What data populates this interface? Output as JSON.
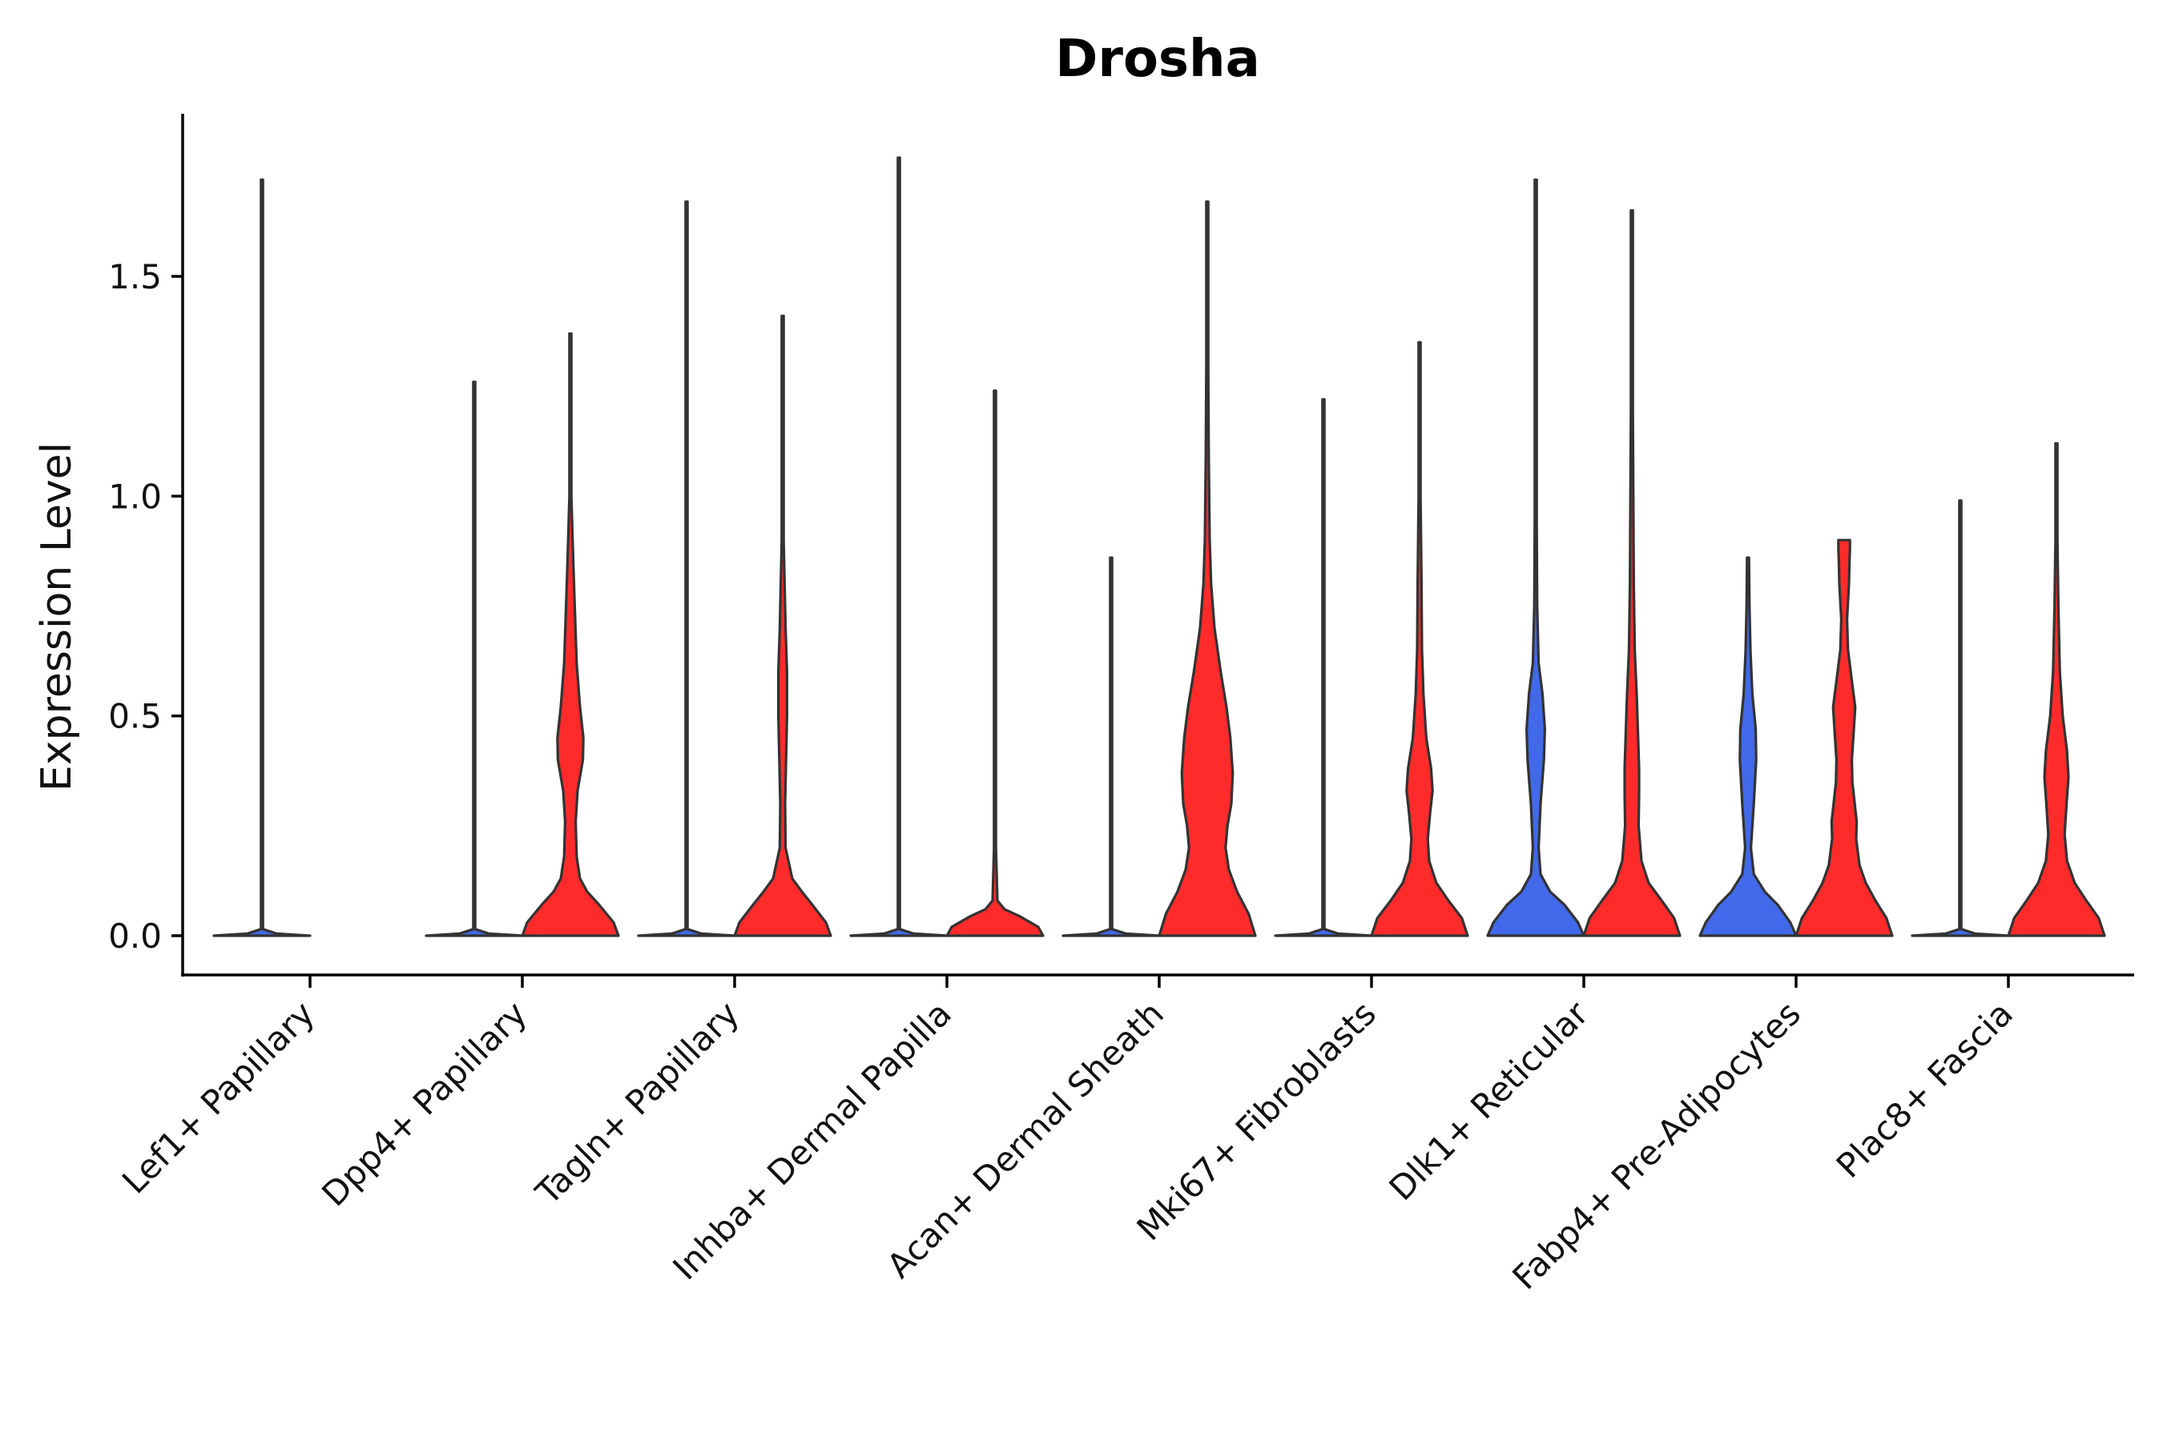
{
  "chart_data": {
    "type": "violin",
    "title": "Drosha",
    "xlabel": "",
    "ylabel": "Expression Level",
    "ylim": [
      -0.09,
      1.87
    ],
    "yticks": [
      0.0,
      0.5,
      1.0,
      1.5
    ],
    "ytick_labels": [
      "0.0",
      "0.5",
      "1.0",
      "1.5"
    ],
    "grid": false,
    "legend": "none",
    "colors": {
      "blue": "#4169e9",
      "red": "#ff2b2b",
      "outline": "#333333"
    },
    "categories": [
      "Lef1+ Papillary",
      "Dpp4+ Papillary",
      "Tagln+ Papillary",
      "Inhba+ Dermal Papilla",
      "Acan+ Dermal Sheath",
      "Mki67+ Fibroblasts",
      "Dlk1+ Reticular",
      "Fabp4+ Pre-Adipocytes",
      "Plac8+ Fascia"
    ],
    "series": [
      {
        "name": "blue",
        "color": "#4169e9",
        "groups": [
          {
            "max": 1.72,
            "profile": [
              [
                0,
                1
              ],
              [
                0.005,
                0.3
              ],
              [
                0.015,
                0.01
              ],
              [
                0.05,
                0.002
              ],
              [
                0.7,
                0.003
              ],
              [
                1.72,
                0.001
              ]
            ]
          },
          {
            "max": 1.26,
            "profile": [
              [
                0,
                1
              ],
              [
                0.005,
                0.3
              ],
              [
                0.015,
                0.01
              ],
              [
                0.05,
                0.002
              ],
              [
                1.26,
                0.001
              ]
            ]
          },
          {
            "max": 1.67,
            "profile": [
              [
                0,
                1
              ],
              [
                0.005,
                0.3
              ],
              [
                0.015,
                0.01
              ],
              [
                0.05,
                0.002
              ],
              [
                1.67,
                0.001
              ]
            ]
          },
          {
            "max": 1.77,
            "profile": [
              [
                0,
                1
              ],
              [
                0.005,
                0.3
              ],
              [
                0.015,
                0.01
              ],
              [
                0.05,
                0.002
              ],
              [
                1.77,
                0.001
              ]
            ]
          },
          {
            "max": 0.86,
            "profile": [
              [
                0,
                1
              ],
              [
                0.005,
                0.3
              ],
              [
                0.015,
                0.01
              ],
              [
                0.05,
                0.002
              ],
              [
                0.3,
                0.004
              ],
              [
                0.6,
                0.004
              ],
              [
                0.86,
                0.001
              ]
            ]
          },
          {
            "max": 1.22,
            "profile": [
              [
                0,
                1
              ],
              [
                0.005,
                0.3
              ],
              [
                0.015,
                0.01
              ],
              [
                0.05,
                0.002
              ],
              [
                1.22,
                0.001
              ]
            ]
          },
          {
            "max": 1.72,
            "profile": [
              [
                0,
                1
              ],
              [
                0.03,
                0.88
              ],
              [
                0.07,
                0.6
              ],
              [
                0.1,
                0.3
              ],
              [
                0.14,
                0.1
              ],
              [
                0.2,
                0.06
              ],
              [
                0.3,
                0.1
              ],
              [
                0.4,
                0.17
              ],
              [
                0.47,
                0.19
              ],
              [
                0.55,
                0.14
              ],
              [
                0.62,
                0.06
              ],
              [
                0.75,
                0.03
              ],
              [
                0.95,
                0.015
              ],
              [
                1.2,
                0.01
              ],
              [
                1.5,
                0.006
              ],
              [
                1.72,
                0.002
              ]
            ]
          },
          {
            "max": 0.86,
            "profile": [
              [
                0,
                1
              ],
              [
                0.03,
                0.88
              ],
              [
                0.07,
                0.62
              ],
              [
                0.1,
                0.35
              ],
              [
                0.14,
                0.12
              ],
              [
                0.2,
                0.06
              ],
              [
                0.3,
                0.12
              ],
              [
                0.4,
                0.17
              ],
              [
                0.47,
                0.16
              ],
              [
                0.55,
                0.09
              ],
              [
                0.65,
                0.05
              ],
              [
                0.75,
                0.03
              ],
              [
                0.86,
                0.002
              ]
            ]
          },
          {
            "max": 0.99,
            "profile": [
              [
                0,
                1
              ],
              [
                0.005,
                0.3
              ],
              [
                0.015,
                0.01
              ],
              [
                0.05,
                0.002
              ],
              [
                0.45,
                0.005
              ],
              [
                0.99,
                0.001
              ]
            ]
          }
        ]
      },
      {
        "name": "red",
        "color": "#ff2b2b",
        "groups": [
          null,
          {
            "max": 1.37,
            "profile": [
              [
                0,
                1
              ],
              [
                0.03,
                0.9
              ],
              [
                0.07,
                0.6
              ],
              [
                0.1,
                0.35
              ],
              [
                0.13,
                0.2
              ],
              [
                0.18,
                0.13
              ],
              [
                0.26,
                0.11
              ],
              [
                0.33,
                0.15
              ],
              [
                0.4,
                0.26
              ],
              [
                0.45,
                0.27
              ],
              [
                0.52,
                0.2
              ],
              [
                0.62,
                0.13
              ],
              [
                0.75,
                0.09
              ],
              [
                0.85,
                0.06
              ],
              [
                1.0,
                0.02
              ],
              [
                1.2,
                0.01
              ],
              [
                1.37,
                0.002
              ]
            ]
          },
          {
            "max": 1.41,
            "profile": [
              [
                0,
                1
              ],
              [
                0.03,
                0.9
              ],
              [
                0.07,
                0.62
              ],
              [
                0.1,
                0.4
              ],
              [
                0.13,
                0.2
              ],
              [
                0.2,
                0.06
              ],
              [
                0.3,
                0.05
              ],
              [
                0.4,
                0.07
              ],
              [
                0.5,
                0.09
              ],
              [
                0.6,
                0.09
              ],
              [
                0.7,
                0.06
              ],
              [
                0.8,
                0.04
              ],
              [
                0.9,
                0.02
              ],
              [
                1.1,
                0.01
              ],
              [
                1.41,
                0.002
              ]
            ]
          },
          {
            "max": 1.24,
            "profile": [
              [
                0,
                1
              ],
              [
                0.02,
                0.9
              ],
              [
                0.045,
                0.5
              ],
              [
                0.06,
                0.2
              ],
              [
                0.08,
                0.05
              ],
              [
                0.2,
                0.01
              ],
              [
                0.4,
                0.015
              ],
              [
                0.6,
                0.01
              ],
              [
                0.8,
                0.01
              ],
              [
                1.0,
                0.005
              ],
              [
                1.24,
                0.002
              ]
            ]
          },
          {
            "max": 1.67,
            "profile": [
              [
                0,
                1
              ],
              [
                0.05,
                0.86
              ],
              [
                0.1,
                0.62
              ],
              [
                0.15,
                0.45
              ],
              [
                0.2,
                0.38
              ],
              [
                0.25,
                0.42
              ],
              [
                0.3,
                0.5
              ],
              [
                0.37,
                0.53
              ],
              [
                0.45,
                0.48
              ],
              [
                0.52,
                0.4
              ],
              [
                0.6,
                0.28
              ],
              [
                0.7,
                0.15
              ],
              [
                0.8,
                0.08
              ],
              [
                0.9,
                0.05
              ],
              [
                1.1,
                0.03
              ],
              [
                1.3,
                0.02
              ],
              [
                1.5,
                0.01
              ],
              [
                1.67,
                0.002
              ]
            ]
          },
          {
            "max": 1.35,
            "profile": [
              [
                0,
                1
              ],
              [
                0.04,
                0.88
              ],
              [
                0.08,
                0.6
              ],
              [
                0.12,
                0.35
              ],
              [
                0.17,
                0.2
              ],
              [
                0.22,
                0.17
              ],
              [
                0.28,
                0.22
              ],
              [
                0.33,
                0.27
              ],
              [
                0.38,
                0.24
              ],
              [
                0.45,
                0.14
              ],
              [
                0.55,
                0.08
              ],
              [
                0.65,
                0.05
              ],
              [
                0.8,
                0.04
              ],
              [
                1.0,
                0.02
              ],
              [
                1.2,
                0.01
              ],
              [
                1.35,
                0.002
              ]
            ]
          },
          {
            "max": 1.65,
            "profile": [
              [
                0,
                1
              ],
              [
                0.04,
                0.88
              ],
              [
                0.08,
                0.62
              ],
              [
                0.12,
                0.35
              ],
              [
                0.17,
                0.2
              ],
              [
                0.25,
                0.14
              ],
              [
                0.32,
                0.15
              ],
              [
                0.38,
                0.15
              ],
              [
                0.45,
                0.13
              ],
              [
                0.55,
                0.1
              ],
              [
                0.65,
                0.06
              ],
              [
                0.8,
                0.04
              ],
              [
                1.0,
                0.03
              ],
              [
                1.2,
                0.02
              ],
              [
                1.45,
                0.01
              ],
              [
                1.65,
                0.002
              ]
            ]
          },
          {
            "max": 0.9,
            "profile": [
              [
                0,
                1
              ],
              [
                0.04,
                0.88
              ],
              [
                0.08,
                0.65
              ],
              [
                0.12,
                0.45
              ],
              [
                0.16,
                0.32
              ],
              [
                0.22,
                0.25
              ],
              [
                0.26,
                0.26
              ],
              [
                0.3,
                0.22
              ],
              [
                0.35,
                0.17
              ],
              [
                0.4,
                0.16
              ],
              [
                0.45,
                0.19
              ],
              [
                0.52,
                0.23
              ],
              [
                0.58,
                0.16
              ],
              [
                0.65,
                0.08
              ],
              [
                0.72,
                0.06
              ],
              [
                0.8,
                0.1
              ],
              [
                0.85,
                0.11
              ],
              [
                0.88,
                0.12
              ],
              [
                0.9,
                0.12
              ]
            ]
          },
          {
            "max": 1.12,
            "profile": [
              [
                0,
                1
              ],
              [
                0.04,
                0.88
              ],
              [
                0.08,
                0.62
              ],
              [
                0.12,
                0.38
              ],
              [
                0.17,
                0.22
              ],
              [
                0.23,
                0.17
              ],
              [
                0.3,
                0.21
              ],
              [
                0.36,
                0.25
              ],
              [
                0.42,
                0.22
              ],
              [
                0.5,
                0.13
              ],
              [
                0.6,
                0.07
              ],
              [
                0.75,
                0.04
              ],
              [
                0.9,
                0.02
              ],
              [
                1.12,
                0.002
              ]
            ]
          }
        ]
      }
    ]
  }
}
